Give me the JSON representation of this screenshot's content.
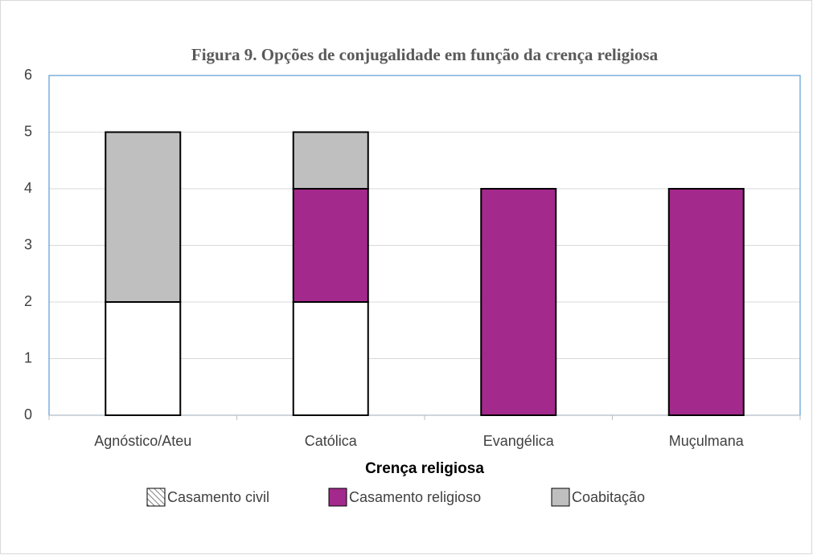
{
  "chart_data": {
    "type": "stacked_bar",
    "title": "Figura 9. Opções de conjugalidade em função da crença religiosa",
    "x_label": "Crença religiosa",
    "categories": [
      "Agnóstico/Ateu",
      "Católica",
      "Evangélica",
      "Muçulmana"
    ],
    "series": [
      {
        "name": "Casamento civil",
        "color": "#ffffff",
        "values": [
          2,
          2,
          0,
          0
        ]
      },
      {
        "name": "Casamento religioso",
        "color": "#a4298c",
        "values": [
          0,
          2,
          4,
          4
        ]
      },
      {
        "name": "Coabitação",
        "color": "#bfbfbf",
        "values": [
          3,
          1,
          0,
          0
        ]
      }
    ],
    "ylim": [
      0,
      6
    ],
    "yticks": [
      0,
      1,
      2,
      3,
      4,
      5,
      6
    ],
    "grid": true
  }
}
